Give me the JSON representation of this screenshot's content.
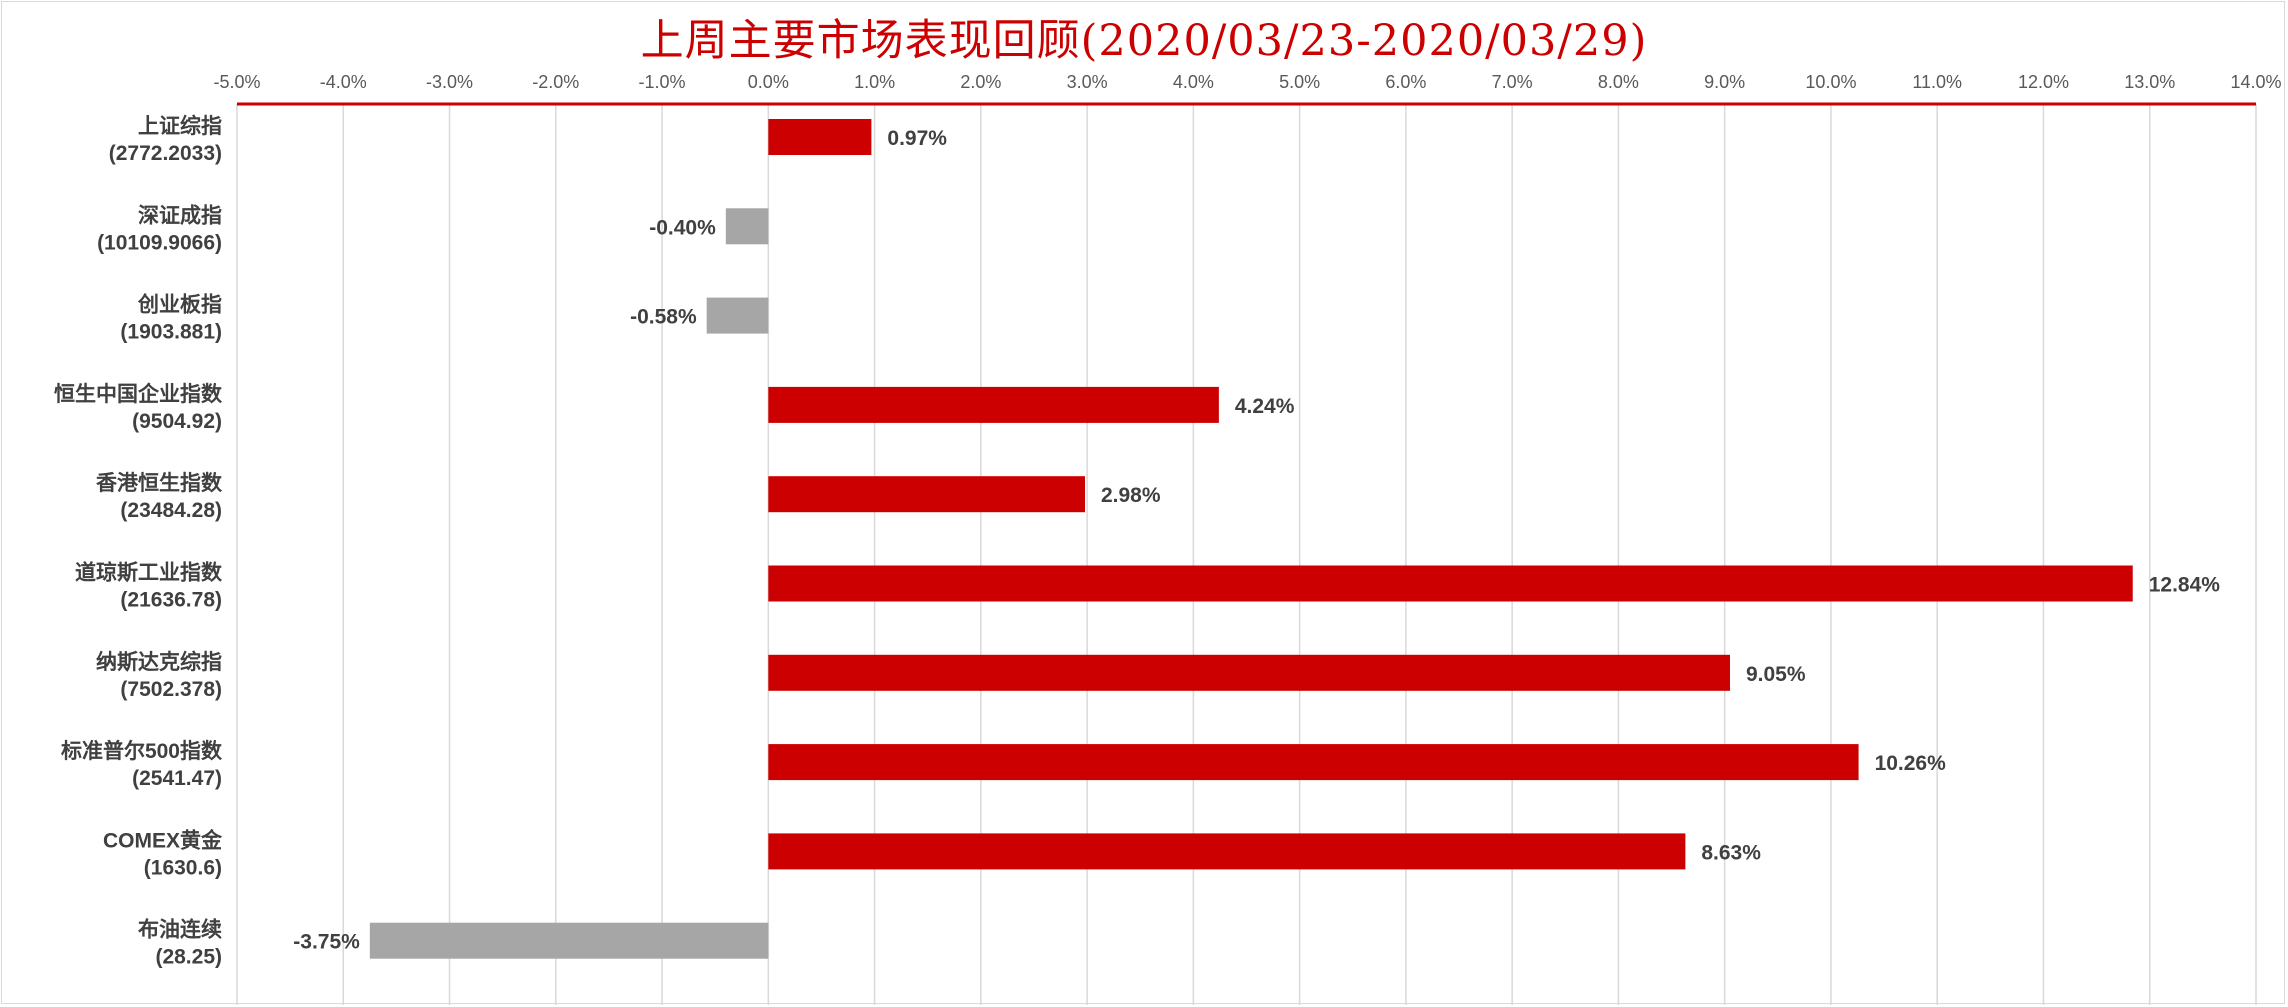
{
  "colors": {
    "positive": "#cc0000",
    "negative": "#a6a6a6",
    "title": "#cc0000",
    "gridline": "#d9d9d9",
    "axis_line": "#cc0000"
  },
  "chart_data": {
    "type": "bar",
    "orientation": "horizontal",
    "title": "上周主要市场表现回顾(2020/03/23-2020/03/29)",
    "xlabel": "",
    "ylabel": "",
    "xlim": [
      -5,
      14
    ],
    "x_ticks": [
      -5,
      -4,
      -3,
      -2,
      -1,
      0,
      1,
      2,
      3,
      4,
      5,
      6,
      7,
      8,
      9,
      10,
      11,
      12,
      13,
      14
    ],
    "x_tick_labels": [
      "-5.0%",
      "-4.0%",
      "-3.0%",
      "-2.0%",
      "-1.0%",
      "0.0%",
      "1.0%",
      "2.0%",
      "3.0%",
      "4.0%",
      "5.0%",
      "6.0%",
      "7.0%",
      "8.0%",
      "9.0%",
      "10.0%",
      "11.0%",
      "12.0%",
      "13.0%",
      "14.0%"
    ],
    "x_axis_position": "top",
    "grid": true,
    "legend": "none",
    "categories": [
      {
        "name": "上证综指",
        "level": "(2772.2033)"
      },
      {
        "name": "深证成指",
        "level": "(10109.9066)"
      },
      {
        "name": "创业板指",
        "level": "(1903.881)"
      },
      {
        "name": "恒生中国企业指数",
        "level": "(9504.92)"
      },
      {
        "name": "香港恒生指数",
        "level": "(23484.28)"
      },
      {
        "name": "道琼斯工业指数",
        "level": "(21636.78)"
      },
      {
        "name": "纳斯达克综指",
        "level": "(7502.378)"
      },
      {
        "name": "标准普尔500指数",
        "level": "(2541.47)"
      },
      {
        "name": "COMEX黄金",
        "level": "(1630.6)"
      },
      {
        "name": "布油连续",
        "level": "(28.25)"
      }
    ],
    "values": [
      0.97,
      -0.4,
      -0.58,
      4.24,
      2.98,
      12.84,
      9.05,
      10.26,
      8.63,
      -3.75
    ],
    "value_labels": [
      "0.97%",
      "-0.40%",
      "-0.58%",
      "4.24%",
      "2.98%",
      "12.84%",
      "9.05%",
      "10.26%",
      "8.63%",
      "-3.75%"
    ]
  }
}
